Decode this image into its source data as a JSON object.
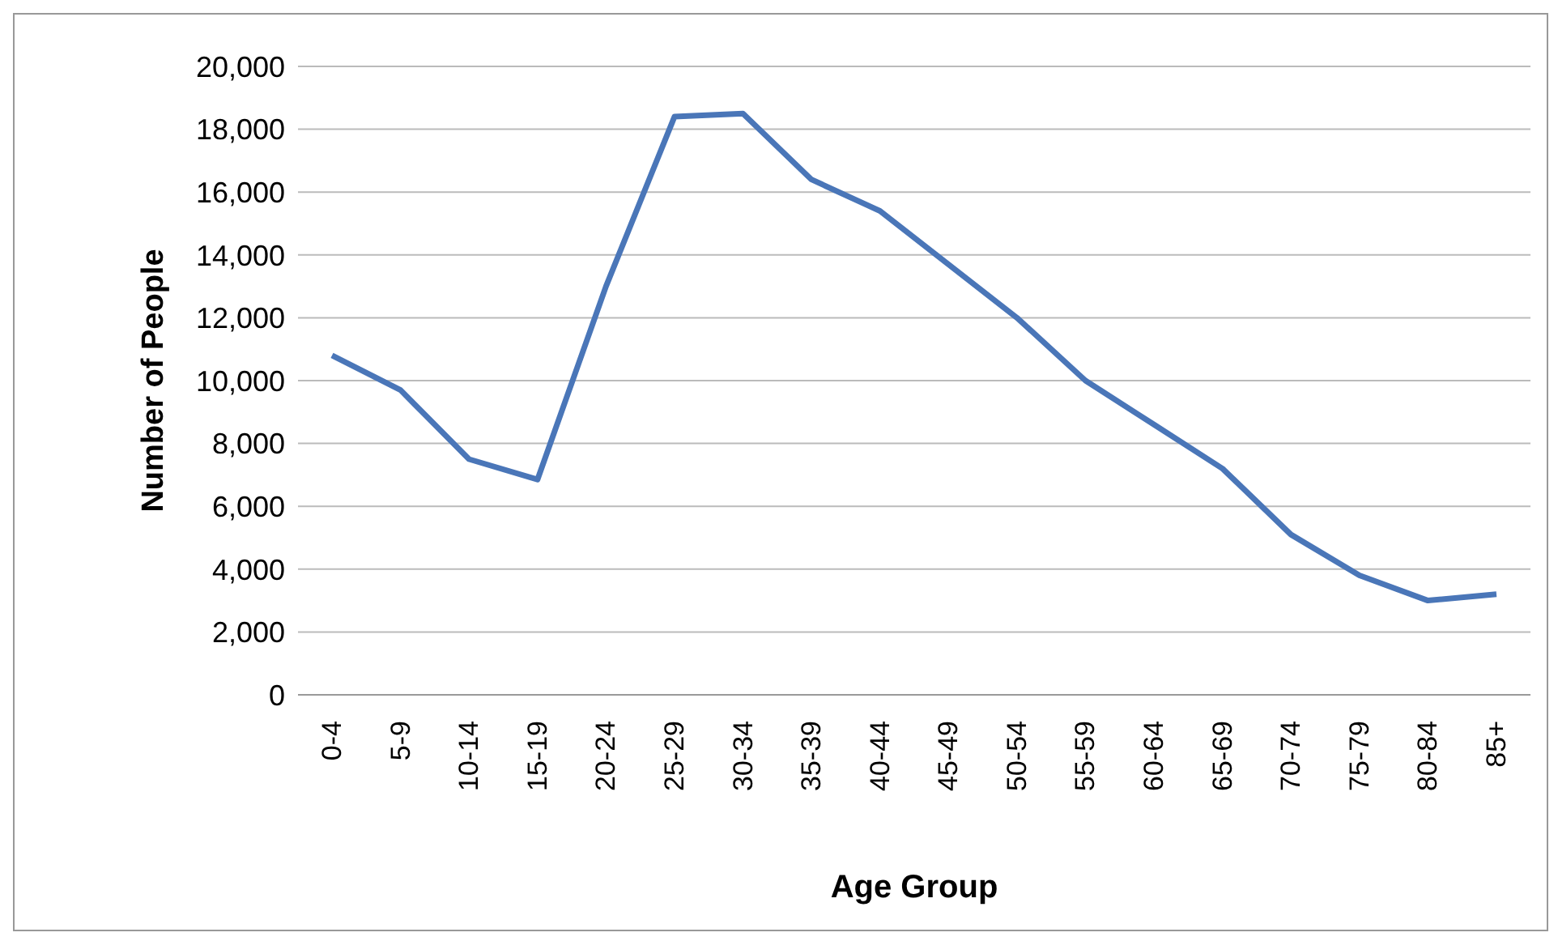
{
  "chart_data": {
    "type": "line",
    "xlabel": "Age Group",
    "ylabel": "Number of People",
    "categories": [
      "0-4",
      "5-9",
      "10-14",
      "15-19",
      "20-24",
      "25-29",
      "30-34",
      "35-39",
      "40-44",
      "45-49",
      "50-54",
      "55-59",
      "60-64",
      "65-69",
      "70-74",
      "75-79",
      "80-84",
      "85+"
    ],
    "series": [
      {
        "color": "#4a76b8",
        "values": [
          10800,
          9700,
          7500,
          6850,
          13000,
          18400,
          18500,
          16400,
          15400,
          13700,
          12000,
          10000,
          8600,
          7200,
          5100,
          3800,
          3000,
          3200
        ]
      }
    ],
    "ylim": [
      0,
      20000
    ],
    "yticks": [
      0,
      {
        "value": 2000,
        "label": "2,000"
      },
      {
        "value": 4000,
        "label": "4,000"
      },
      {
        "value": 6000,
        "label": "6,000"
      },
      {
        "value": 8000,
        "label": "8,000"
      },
      {
        "value": 10000,
        "label": "10,000"
      },
      {
        "value": 12000,
        "label": "12,000"
      },
      {
        "value": 14000,
        "label": "14,000"
      },
      {
        "value": 16000,
        "label": "16,000"
      },
      {
        "value": 18000,
        "label": "18,000"
      },
      {
        "value": 20000,
        "label": "20,000"
      }
    ],
    "grid": "y",
    "legend": false,
    "marker": "none",
    "line_style": "solid"
  }
}
